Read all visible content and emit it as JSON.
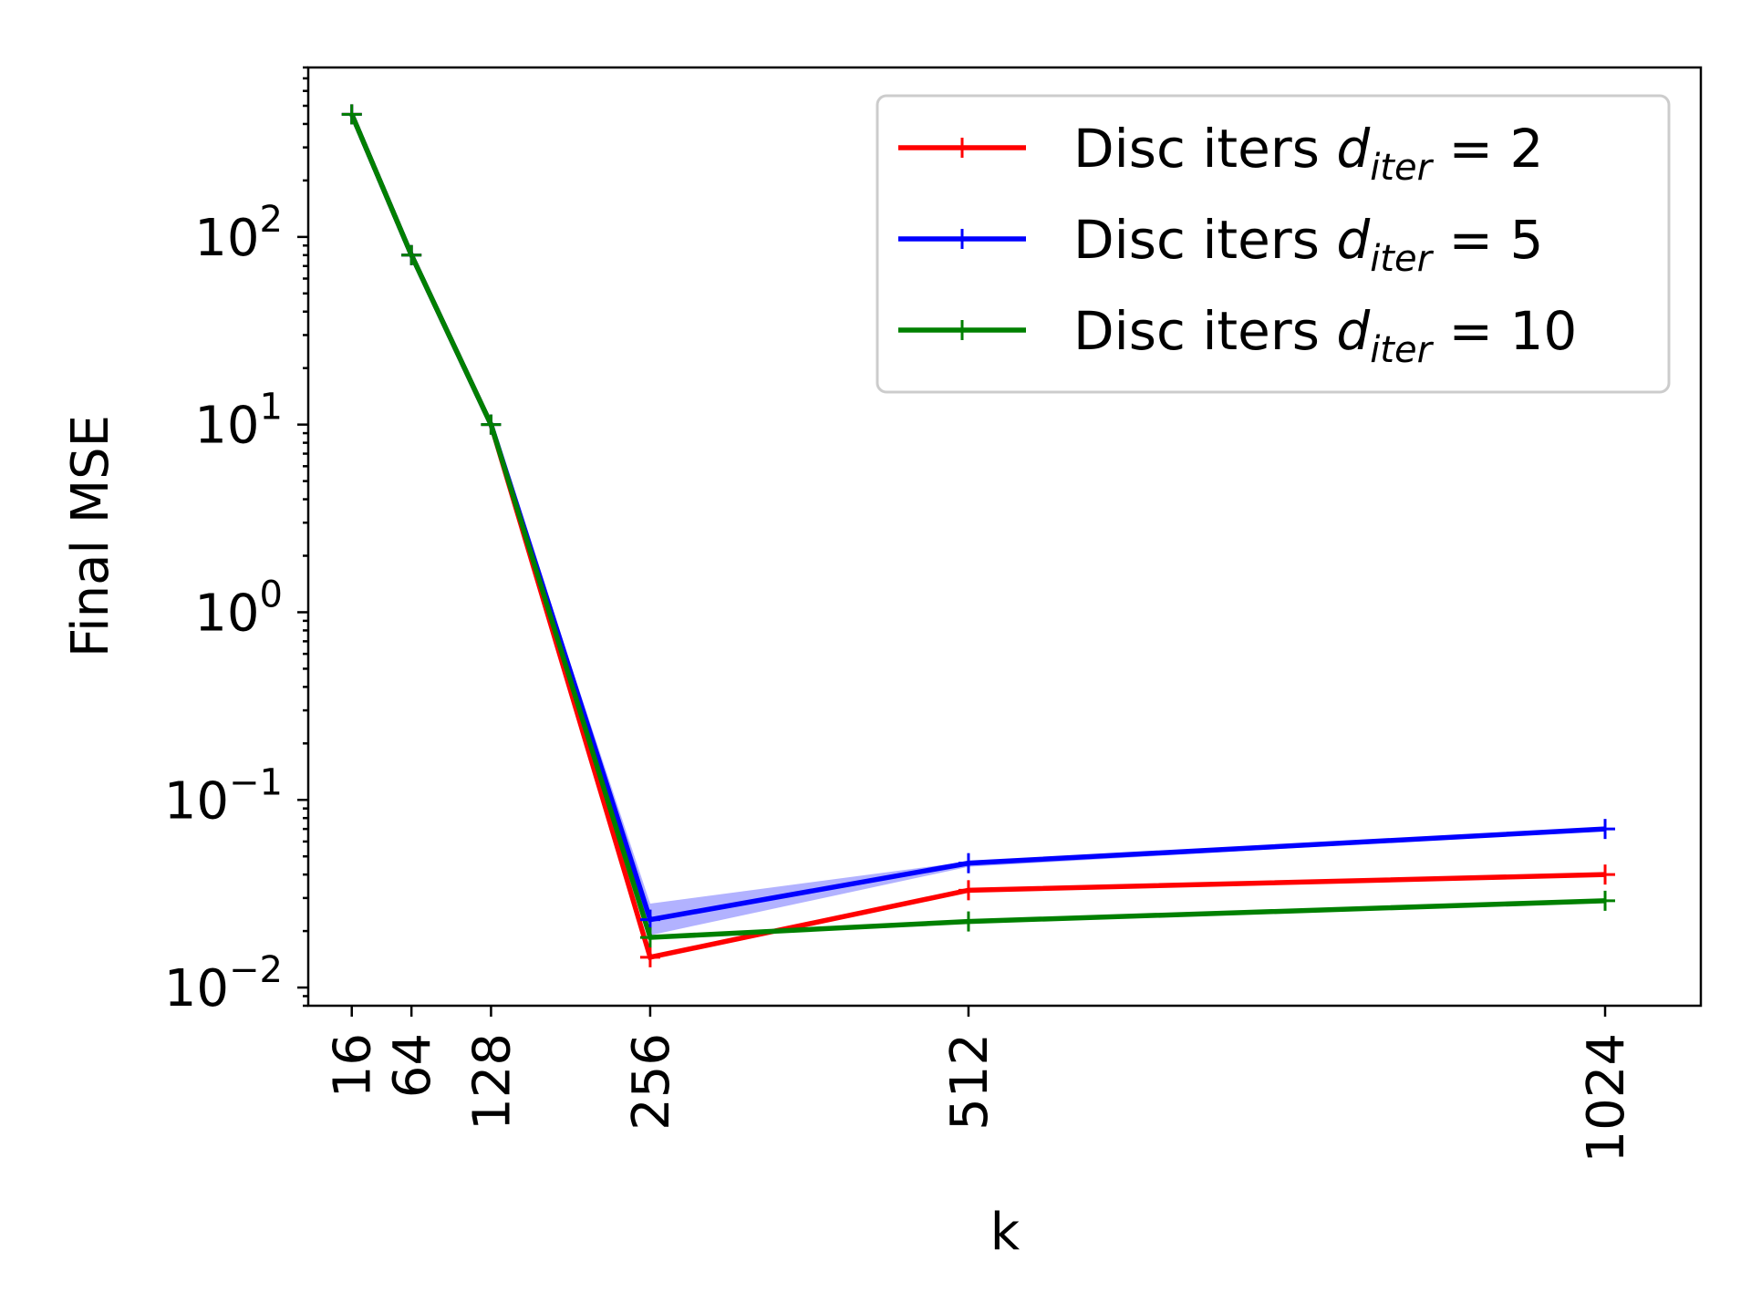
{
  "chart_data": {
    "type": "line",
    "xlabel": "k",
    "ylabel": "Final MSE",
    "yscale": "log",
    "ylim": [
      0.008,
      800
    ],
    "xlim": [
      -19,
      1101
    ],
    "x": [
      16,
      64,
      128,
      256,
      512,
      1024
    ],
    "x_tick_labels": [
      "16",
      "64",
      "128",
      "256",
      "512",
      "1024"
    ],
    "y_ticks": [
      {
        "base": "10",
        "exp": "2",
        "value": 100
      },
      {
        "base": "10",
        "exp": "1",
        "value": 10
      },
      {
        "base": "10",
        "exp": "0",
        "value": 1
      },
      {
        "base": "10",
        "exp": "−1",
        "value": 0.1
      },
      {
        "base": "10",
        "exp": "−2",
        "value": 0.01
      }
    ],
    "grid": false,
    "legend_placement": "top-right",
    "series": [
      {
        "name": "Disc iters ",
        "name_math": {
          "var": "d",
          "sub": "iter",
          "rest": " = 2"
        },
        "color": "#ff0000",
        "values": [
          450,
          80,
          10,
          0.0145,
          0.033,
          0.04
        ],
        "band_low": null,
        "band_high": null
      },
      {
        "name": "Disc iters ",
        "name_math": {
          "var": "d",
          "sub": "iter",
          "rest": " = 5"
        },
        "color": "#0000ff",
        "values": [
          450,
          80,
          10,
          0.023,
          0.046,
          0.07
        ],
        "band_low": [
          450,
          80,
          10,
          0.019,
          0.044,
          0.069
        ],
        "band_high": [
          450,
          80,
          10,
          0.028,
          0.047,
          0.071
        ]
      },
      {
        "name": "Disc iters ",
        "name_math": {
          "var": "d",
          "sub": "iter",
          "rest": " = 10"
        },
        "color": "#008000",
        "values": [
          450,
          80,
          10,
          0.0185,
          0.0225,
          0.029
        ],
        "band_low": null,
        "band_high": null
      }
    ]
  }
}
